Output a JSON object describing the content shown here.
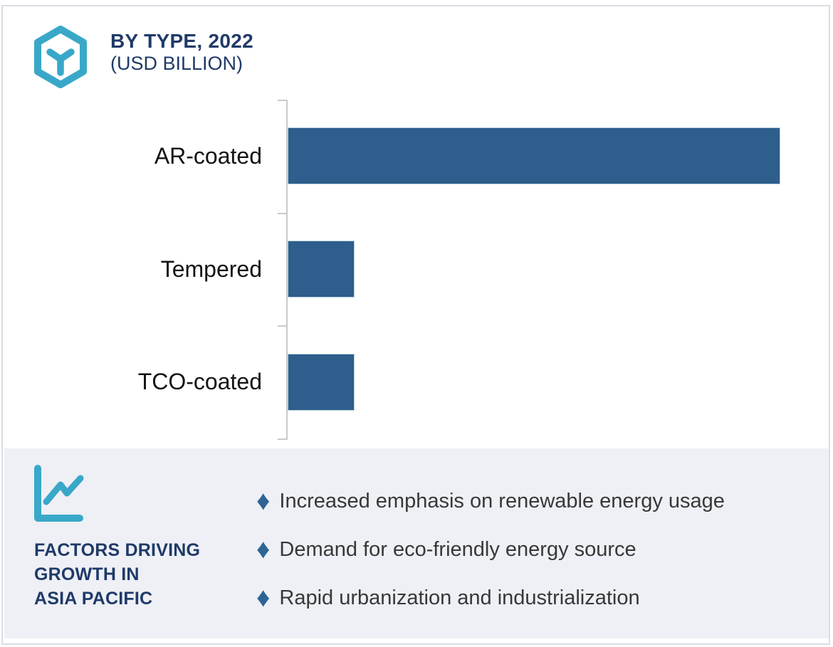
{
  "header": {
    "title": "BY TYPE, 2022",
    "subtitle": "(USD BILLION)",
    "icon": "hexagon-y-logo-icon"
  },
  "chart_data": {
    "type": "bar",
    "orientation": "horizontal",
    "title": "BY TYPE, 2022",
    "unit": "USD BILLION",
    "categories": [
      "AR-coated",
      "Tempered",
      "TCO-coated"
    ],
    "values_relative": [
      7.4,
      1.0,
      1.0
    ],
    "value_labels_shown": false,
    "axis": {
      "style": "left vertical line with 4 ticks",
      "gridlines": false,
      "numeric_labels": false
    },
    "legend": "none"
  },
  "factors": {
    "icon": "line-chart-icon",
    "title_lines": [
      "FACTORS DRIVING",
      "GROWTH IN",
      "ASIA PACIFIC"
    ],
    "bullet_marker": "♦",
    "items": [
      "Increased emphasis on renewable energy usage",
      "Demand for eco-friendly energy source",
      "Rapid urbanization and industrialization"
    ]
  },
  "colors": {
    "bar": "#2d5e8c",
    "diamond": "#2d6496",
    "accent_teal": "#39a8c8",
    "navy": "#1f3a68",
    "panel_bg": "#eef0f5",
    "frame_border": "#dbdce4",
    "axis_line": "#c9c9c9"
  }
}
